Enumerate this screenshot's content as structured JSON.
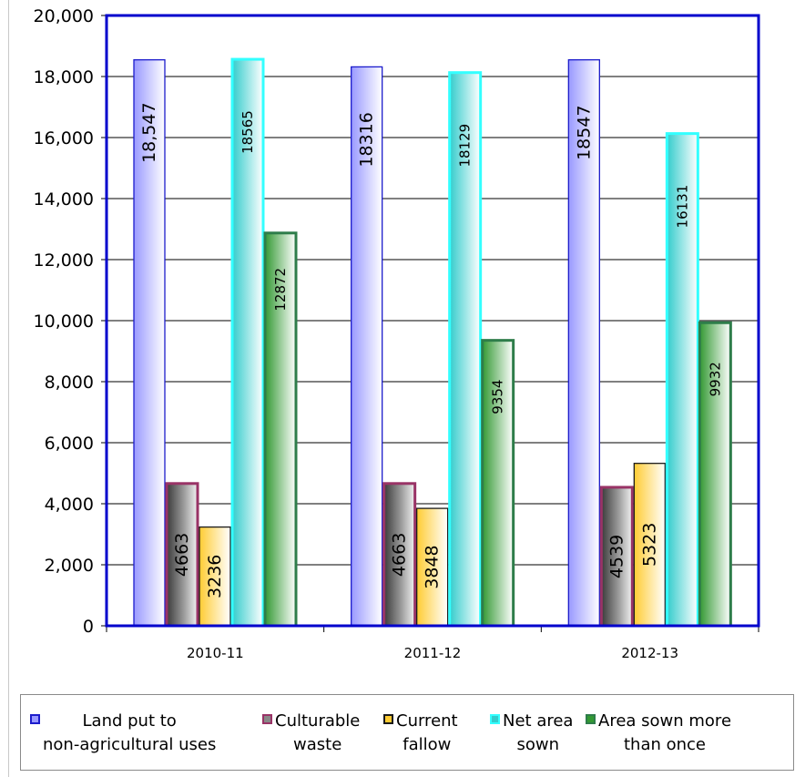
{
  "chart_data": {
    "type": "bar",
    "categories": [
      "2010-11",
      "2011-12",
      "2012-13"
    ],
    "ylim": [
      0,
      20000
    ],
    "yticks": [
      "0",
      "2,000",
      "4,000",
      "6,000",
      "8,000",
      "10,000",
      "12,000",
      "14,000",
      "16,000",
      "18,000",
      "20,000"
    ],
    "ytick_values": [
      0,
      2000,
      4000,
      6000,
      8000,
      10000,
      12000,
      14000,
      16000,
      18000,
      20000
    ],
    "grid": true,
    "legend_position": "bottom",
    "series": [
      {
        "name": "Land put to\nnon-agricultural uses",
        "values": [
          18547,
          18316,
          18547
        ],
        "labels": [
          "18,547",
          "18316",
          "18547"
        ],
        "color": "#9999ff",
        "edge": "#1c1ccc"
      },
      {
        "name": "Culturable\nwaste",
        "values": [
          4663,
          4663,
          4539
        ],
        "labels": [
          "4663",
          "4663",
          "4539"
        ],
        "color": "#555555",
        "edge": "#993366"
      },
      {
        "name": "Current\nfallow",
        "values": [
          3236,
          3848,
          5323
        ],
        "labels": [
          "3236",
          "3848",
          "5323"
        ],
        "color": "#ffcc33",
        "edge": "#1a1a1a"
      },
      {
        "name": "Net area\nsown",
        "values": [
          18565,
          18129,
          16131
        ],
        "labels": [
          "18565",
          "18129",
          "16131"
        ],
        "color": "#33cccc",
        "edge": "#33ffff"
      },
      {
        "name": "Area sown more\nthan once",
        "values": [
          12872,
          9354,
          9932
        ],
        "labels": [
          "12872",
          "9354",
          "9932"
        ],
        "color": "#339933",
        "edge": "#2e7d4a"
      }
    ]
  }
}
